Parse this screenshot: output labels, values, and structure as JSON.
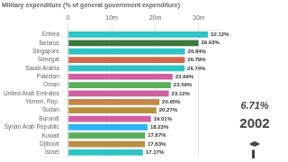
{
  "chart_data": {
    "type": "bar",
    "orientation": "horizontal",
    "title": "Military expenditure (% of general government expenditure)",
    "categories": [
      "Eritrea",
      "Belarus",
      "Singapore",
      "Senegal",
      "Saudi Arabia",
      "Pakistan",
      "Oman",
      "United Arab Emirates",
      "Yemen, Rep.",
      "Sudan",
      "Burundi",
      "Syrian Arab Republic",
      "Kuwait",
      "Djibouti",
      "Israel"
    ],
    "values": [
      32.12,
      29.93,
      26.84,
      26.79,
      26.74,
      23.99,
      23.59,
      23.12,
      20.95,
      20.27,
      19.01,
      18.23,
      17.67,
      17.63,
      17.17
    ],
    "value_labels": [
      "32.12%",
      "29.93%",
      "26.84%",
      "26.79%",
      "26.74%",
      "23.99%",
      "23.59%",
      "23.12%",
      "20.95%",
      "20.27%",
      "19.01%",
      "18.23%",
      "17.67%",
      "17.63%",
      "17.17%"
    ],
    "data_labels": true,
    "colors": [
      "#2ec4c4",
      "#3a7a3a",
      "#2ec4c4",
      "#d4694a",
      "#2ec4c4",
      "#d060a0",
      "#5ab05a",
      "#d060a0",
      "#c4884a",
      "#b89040",
      "#d060a0",
      "#29b6f6",
      "#5ab05a",
      "#b89040",
      "#2ec4c4"
    ],
    "xlim": [
      0,
      35
    ],
    "xticks": [
      0,
      {
        "value": 10,
        "label": "10m"
      },
      {
        "value": 20,
        "label": "20m"
      },
      {
        "value": 30,
        "label": "30m"
      }
    ],
    "grid": true,
    "annotations": [
      "6.71%",
      "2002",
      "◀▶",
      "▌"
    ]
  }
}
